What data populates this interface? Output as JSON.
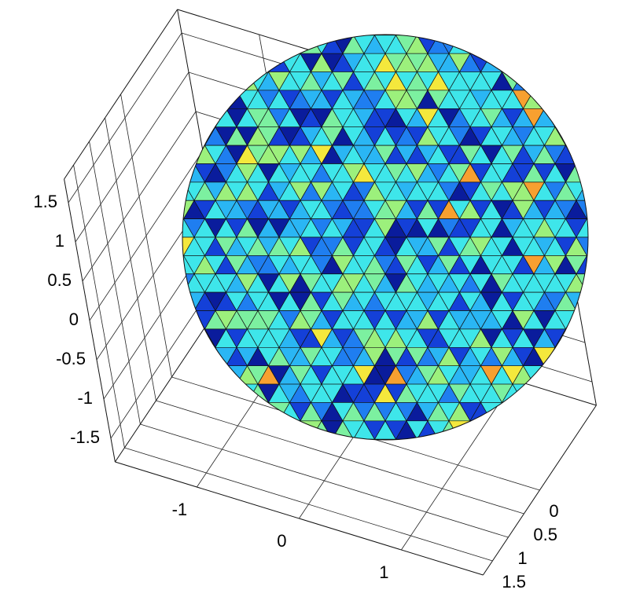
{
  "chart_data": {
    "type": "surface3d",
    "xlim": [
      -1.8,
      1.8
    ],
    "ylim": [
      -1.8,
      1.8
    ],
    "zlim": [
      -1.8,
      1.8
    ],
    "xticks": [
      -1,
      0,
      1
    ],
    "yticks": [
      0,
      0.5,
      1,
      1.5
    ],
    "zticks": [
      -1.5,
      -1,
      -0.5,
      0,
      0.5,
      1,
      1.5
    ],
    "grid": true
  }
}
